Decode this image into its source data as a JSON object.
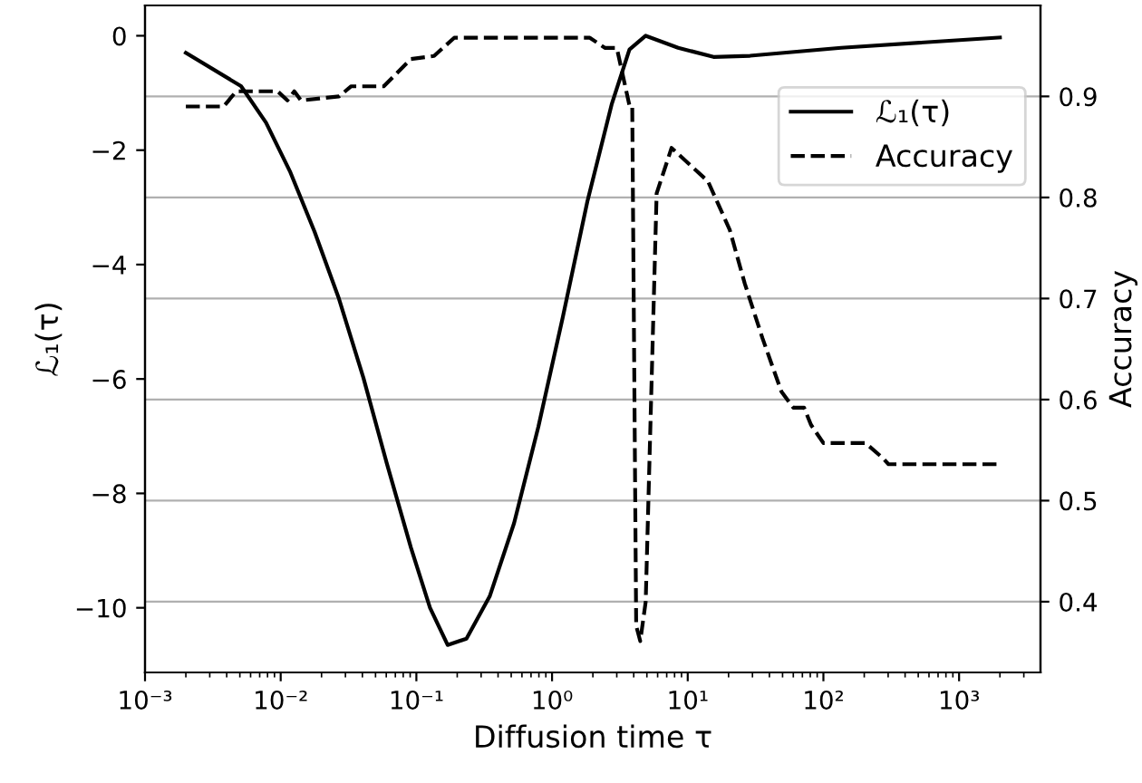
{
  "chart_data": {
    "type": "line",
    "xlabel": "Diffusion time τ",
    "ylabel": "ℒ₁(τ)",
    "y2label": "Accuracy",
    "log": "x",
    "grid": "y2",
    "legend": "top right",
    "xlim": [
      0.001,
      3981
    ],
    "ylim": [
      -11.13,
      0.53
    ],
    "y2lim": [
      0.33,
      0.99
    ],
    "xticks": [
      {
        "value": 0.001,
        "label": "10⁻³"
      },
      {
        "value": 0.01,
        "label": "10⁻²"
      },
      {
        "value": 0.1,
        "label": "10⁻¹"
      },
      {
        "value": 1,
        "label": "10⁰"
      },
      {
        "value": 10,
        "label": "10¹"
      },
      {
        "value": 100,
        "label": "10²"
      },
      {
        "value": 1000,
        "label": "10³"
      }
    ],
    "yticks": [
      -10,
      -8,
      -6,
      -4,
      -2,
      0
    ],
    "y2ticks": [
      0.4,
      0.5,
      0.6,
      0.7,
      0.8,
      0.9
    ],
    "series": [
      {
        "name": "ℒ₁(τ)",
        "color": "#000000",
        "line_style": "solid",
        "axis": "y",
        "x": [
          0.002,
          0.0051,
          0.0078,
          0.0117,
          0.0178,
          0.0269,
          0.0407,
          0.0603,
          0.0912,
          0.126,
          0.17,
          0.234,
          0.347,
          0.525,
          0.794,
          1.2,
          1.82,
          2.75,
          3.72,
          4.9,
          8.5,
          15.5,
          28.8,
          135,
          2000
        ],
        "values": [
          -0.3,
          -0.88,
          -1.52,
          -2.37,
          -3.43,
          -4.6,
          -5.98,
          -7.46,
          -8.95,
          -10.0,
          -10.65,
          -10.54,
          -9.8,
          -8.52,
          -6.83,
          -4.92,
          -2.9,
          -1.2,
          -0.24,
          0.0,
          -0.21,
          -0.37,
          -0.35,
          -0.21,
          -0.03
        ]
      },
      {
        "name": "Accuracy",
        "color": "#000000",
        "line_style": "dashed",
        "axis": "y2",
        "x": [
          0.002,
          0.0038,
          0.0047,
          0.0095,
          0.0112,
          0.0126,
          0.0141,
          0.0269,
          0.0331,
          0.0575,
          0.0912,
          0.135,
          0.19,
          1.9,
          2.45,
          3.0,
          3.72,
          3.9,
          4.17,
          4.47,
          4.9,
          5.9,
          7.6,
          14.1,
          20.4,
          26.3,
          35.5,
          49,
          60,
          72,
          81,
          100,
          204,
          275,
          302,
          2000
        ],
        "values": [
          0.89,
          0.89,
          0.905,
          0.905,
          0.896,
          0.905,
          0.896,
          0.9,
          0.91,
          0.91,
          0.937,
          0.94,
          0.958,
          0.958,
          0.948,
          0.948,
          0.891,
          0.891,
          0.376,
          0.361,
          0.4,
          0.804,
          0.849,
          0.816,
          0.768,
          0.715,
          0.661,
          0.608,
          0.592,
          0.592,
          0.575,
          0.557,
          0.557,
          0.542,
          0.536,
          0.536
        ]
      }
    ]
  }
}
